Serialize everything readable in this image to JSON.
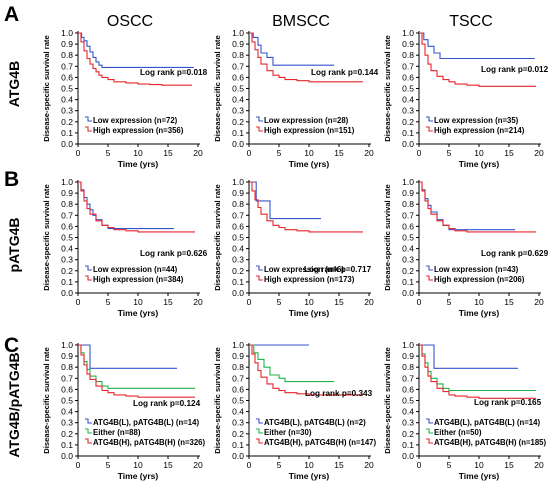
{
  "columns": [
    "OSCC",
    "BMSCC",
    "TSCC"
  ],
  "rows": [
    {
      "letter": "A",
      "label": "ATG4B"
    },
    {
      "letter": "B",
      "label": "pATG4B"
    },
    {
      "letter": "C",
      "label": "ATG4B/pATG4B"
    }
  ],
  "colors": {
    "blue": "#3355cc",
    "red": "#e8262b",
    "green": "#22b24a"
  },
  "chart_data": [
    {
      "type": "line",
      "row": 0,
      "col": 0,
      "xlabel": "Time (yrs)",
      "ylabel": "Disease-specific survival rate",
      "xlim": [
        0,
        20
      ],
      "ylim": [
        0,
        1.0
      ],
      "xticks": [
        0,
        5,
        10,
        15,
        20
      ],
      "yticks": [
        0.0,
        0.1,
        0.2,
        0.3,
        0.4,
        0.5,
        0.6,
        0.7,
        0.8,
        0.9,
        1.0
      ],
      "annotation": "Log rank p=0.018",
      "series": [
        {
          "name": "Low expression (n=72)",
          "color": "blue",
          "x": [
            0,
            0.6,
            1.0,
            1.5,
            2.0,
            2.5,
            3.0,
            3.5,
            4.0,
            19.3
          ],
          "y": [
            1.0,
            0.96,
            0.93,
            0.88,
            0.83,
            0.78,
            0.74,
            0.71,
            0.69,
            0.69
          ]
        },
        {
          "name": "High expression (n=356)",
          "color": "red",
          "x": [
            0,
            0.5,
            1.0,
            1.5,
            2.0,
            2.5,
            3.0,
            3.5,
            4.0,
            5.0,
            6.0,
            8.0,
            10.0,
            12.0,
            14.0,
            19.0
          ],
          "y": [
            1.0,
            0.92,
            0.84,
            0.77,
            0.72,
            0.68,
            0.65,
            0.62,
            0.6,
            0.58,
            0.56,
            0.55,
            0.54,
            0.535,
            0.53,
            0.53
          ]
        }
      ]
    },
    {
      "type": "line",
      "row": 0,
      "col": 1,
      "xlabel": "Time (yrs)",
      "ylabel": "Disease-specific survival rate",
      "xlim": [
        0,
        20
      ],
      "ylim": [
        0,
        1.0
      ],
      "xticks": [
        0,
        5,
        10,
        15,
        20
      ],
      "yticks": [
        0.0,
        0.1,
        0.2,
        0.3,
        0.4,
        0.5,
        0.6,
        0.7,
        0.8,
        0.9,
        1.0
      ],
      "annotation": "Log rank p=0.144",
      "series": [
        {
          "name": "Low expression (n=28)",
          "color": "blue",
          "x": [
            0,
            0.7,
            1.5,
            2.0,
            3.0,
            4.0,
            14.2
          ],
          "y": [
            1.0,
            0.96,
            0.89,
            0.82,
            0.78,
            0.71,
            0.71
          ]
        },
        {
          "name": "High expression (n=151)",
          "color": "red",
          "x": [
            0,
            0.5,
            1.0,
            1.5,
            2.0,
            3.0,
            4.0,
            5.0,
            6.0,
            8.0,
            10.0,
            14.0,
            19.0
          ],
          "y": [
            1.0,
            0.92,
            0.85,
            0.78,
            0.72,
            0.66,
            0.62,
            0.6,
            0.58,
            0.57,
            0.56,
            0.56,
            0.56
          ]
        }
      ]
    },
    {
      "type": "line",
      "row": 0,
      "col": 2,
      "xlabel": "Time (yrs)",
      "ylabel": "Disease-specific survival rate",
      "xlim": [
        0,
        20
      ],
      "ylim": [
        0,
        1.0
      ],
      "xticks": [
        0,
        5,
        10,
        15,
        20
      ],
      "yticks": [
        0.0,
        0.1,
        0.2,
        0.3,
        0.4,
        0.5,
        0.6,
        0.7,
        0.8,
        0.9,
        1.0
      ],
      "annotation": "Log rank p=0.012",
      "series": [
        {
          "name": "Low expression (n=35)",
          "color": "blue",
          "x": [
            0,
            0.8,
            1.5,
            2.5,
            3.5,
            19.3
          ],
          "y": [
            1.0,
            0.94,
            0.88,
            0.82,
            0.77,
            0.77
          ]
        },
        {
          "name": "High expression (n=214)",
          "color": "red",
          "x": [
            0,
            0.5,
            1.0,
            1.5,
            2.0,
            3.0,
            4.0,
            5.0,
            6.0,
            8.0,
            10.0,
            12.0,
            19.5
          ],
          "y": [
            1.0,
            0.9,
            0.8,
            0.72,
            0.66,
            0.61,
            0.58,
            0.56,
            0.54,
            0.53,
            0.52,
            0.52,
            0.52
          ]
        }
      ]
    },
    {
      "type": "line",
      "row": 1,
      "col": 0,
      "xlabel": "Time (yrs)",
      "ylabel": "Disease-specific survival rate",
      "xlim": [
        0,
        20
      ],
      "ylim": [
        0,
        1.0
      ],
      "xticks": [
        0,
        5,
        10,
        15,
        20
      ],
      "yticks": [
        0.0,
        0.1,
        0.2,
        0.3,
        0.4,
        0.5,
        0.6,
        0.7,
        0.8,
        0.9,
        1.0
      ],
      "annotation": "Log rank p=0.626",
      "series": [
        {
          "name": "Low expression (n=44)",
          "color": "blue",
          "x": [
            0,
            0.5,
            1.0,
            1.5,
            2.0,
            2.5,
            3.0,
            4.0,
            5.0,
            16.0
          ],
          "y": [
            1.0,
            0.93,
            0.86,
            0.8,
            0.75,
            0.7,
            0.66,
            0.61,
            0.58,
            0.58
          ]
        },
        {
          "name": "High expression (n=384)",
          "color": "red",
          "x": [
            0,
            0.5,
            1.0,
            1.5,
            2.0,
            3.0,
            4.0,
            5.0,
            6.0,
            8.0,
            10.0,
            19.5
          ],
          "y": [
            1.0,
            0.92,
            0.83,
            0.76,
            0.71,
            0.65,
            0.61,
            0.59,
            0.57,
            0.56,
            0.55,
            0.55
          ]
        }
      ]
    },
    {
      "type": "line",
      "row": 1,
      "col": 1,
      "xlabel": "Time (yrs)",
      "ylabel": "Disease-specific survival rate",
      "xlim": [
        0,
        20
      ],
      "ylim": [
        0,
        1.0
      ],
      "xticks": [
        0,
        5,
        10,
        15,
        20
      ],
      "yticks": [
        0.0,
        0.1,
        0.2,
        0.3,
        0.4,
        0.5,
        0.6,
        0.7,
        0.8,
        0.9,
        1.0
      ],
      "annotation": "Log rank p=0.717",
      "series": [
        {
          "name": "Low expression (n=6)",
          "color": "blue",
          "x": [
            0,
            1.2,
            3.5,
            12.0
          ],
          "y": [
            1.0,
            0.83,
            0.67,
            0.67
          ]
        },
        {
          "name": "High expression (n=173)",
          "color": "red",
          "x": [
            0,
            0.5,
            1.0,
            1.5,
            2.0,
            3.0,
            4.0,
            5.0,
            6.0,
            8.0,
            10.0,
            19.0
          ],
          "y": [
            1.0,
            0.92,
            0.84,
            0.77,
            0.71,
            0.65,
            0.61,
            0.59,
            0.57,
            0.56,
            0.55,
            0.55
          ]
        }
      ]
    },
    {
      "type": "line",
      "row": 1,
      "col": 2,
      "xlabel": "Time (yrs)",
      "ylabel": "Disease-specific survival rate",
      "xlim": [
        0,
        20
      ],
      "ylim": [
        0,
        1.0
      ],
      "xticks": [
        0,
        5,
        10,
        15,
        20
      ],
      "yticks": [
        0.0,
        0.1,
        0.2,
        0.3,
        0.4,
        0.5,
        0.6,
        0.7,
        0.8,
        0.9,
        1.0
      ],
      "annotation": "Log rank p=0.629",
      "series": [
        {
          "name": "Low expression (n=43)",
          "color": "blue",
          "x": [
            0,
            0.5,
            1.0,
            1.5,
            2.0,
            3.0,
            4.0,
            5.0,
            16.0
          ],
          "y": [
            1.0,
            0.93,
            0.85,
            0.79,
            0.73,
            0.66,
            0.61,
            0.57,
            0.57
          ]
        },
        {
          "name": "High expression (n=206)",
          "color": "red",
          "x": [
            0,
            0.5,
            1.0,
            1.5,
            2.0,
            3.0,
            4.0,
            5.0,
            6.0,
            8.0,
            10.0,
            19.5
          ],
          "y": [
            1.0,
            0.92,
            0.83,
            0.76,
            0.71,
            0.65,
            0.61,
            0.58,
            0.56,
            0.55,
            0.55,
            0.55
          ]
        }
      ]
    },
    {
      "type": "line",
      "row": 2,
      "col": 0,
      "xlabel": "Time (yrs)",
      "ylabel": "Disease-specific survival rate",
      "xlim": [
        0,
        20
      ],
      "ylim": [
        0,
        1.0
      ],
      "xticks": [
        0,
        5,
        10,
        15,
        20
      ],
      "yticks": [
        0.0,
        0.1,
        0.2,
        0.3,
        0.4,
        0.5,
        0.6,
        0.7,
        0.8,
        0.9,
        1.0
      ],
      "annotation": "Log rank p=0.124",
      "series": [
        {
          "name": "ATG4B(L), pATG4B(L) (n=14)",
          "color": "blue",
          "x": [
            0,
            2.0,
            16.5
          ],
          "y": [
            1.0,
            0.79,
            0.79
          ]
        },
        {
          "name": "Either (n=88)",
          "color": "green",
          "x": [
            0,
            0.5,
            1.0,
            1.5,
            2.0,
            3.0,
            4.0,
            5.0,
            19.5
          ],
          "y": [
            1.0,
            0.93,
            0.85,
            0.78,
            0.72,
            0.67,
            0.63,
            0.61,
            0.61
          ]
        },
        {
          "name": "ATG4B(H), pATG4B(H) (n=326)",
          "color": "red",
          "x": [
            0,
            0.5,
            1.0,
            1.5,
            2.0,
            3.0,
            4.0,
            5.0,
            6.0,
            8.0,
            10.0,
            19.5
          ],
          "y": [
            1.0,
            0.91,
            0.82,
            0.74,
            0.69,
            0.63,
            0.59,
            0.57,
            0.55,
            0.54,
            0.53,
            0.53
          ]
        }
      ]
    },
    {
      "type": "line",
      "row": 2,
      "col": 1,
      "xlabel": "Time (yrs)",
      "ylabel": "Disease-specific survival rate",
      "xlim": [
        0,
        20
      ],
      "ylim": [
        0,
        1.0
      ],
      "xticks": [
        0,
        5,
        10,
        15,
        20
      ],
      "yticks": [
        0.0,
        0.1,
        0.2,
        0.3,
        0.4,
        0.5,
        0.6,
        0.7,
        0.8,
        0.9,
        1.0
      ],
      "annotation": "Log rank p=0.343",
      "series": [
        {
          "name": "ATG4B(L), pATG4B(L) (n=2)",
          "color": "blue",
          "x": [
            0,
            10.0
          ],
          "y": [
            1.0,
            1.0
          ]
        },
        {
          "name": "Either (n=30)",
          "color": "green",
          "x": [
            0,
            0.8,
            1.5,
            2.5,
            3.5,
            5.0,
            6.0,
            14.2
          ],
          "y": [
            1.0,
            0.93,
            0.87,
            0.8,
            0.73,
            0.7,
            0.67,
            0.67
          ]
        },
        {
          "name": "ATG4B(H), pATG4B(H) (n=147)",
          "color": "red",
          "x": [
            0,
            0.5,
            1.0,
            1.5,
            2.0,
            3.0,
            4.0,
            5.0,
            6.0,
            8.0,
            10.0,
            19.0
          ],
          "y": [
            1.0,
            0.92,
            0.84,
            0.77,
            0.71,
            0.65,
            0.61,
            0.59,
            0.57,
            0.56,
            0.55,
            0.55
          ]
        }
      ]
    },
    {
      "type": "line",
      "row": 2,
      "col": 2,
      "xlabel": "Time (yrs)",
      "ylabel": "Disease-specific survival rate",
      "xlim": [
        0,
        20
      ],
      "ylim": [
        0,
        1.0
      ],
      "xticks": [
        0,
        5,
        10,
        15,
        20
      ],
      "yticks": [
        0.0,
        0.1,
        0.2,
        0.3,
        0.4,
        0.5,
        0.6,
        0.7,
        0.8,
        0.9,
        1.0
      ],
      "annotation": "Log rank p=0.165",
      "series": [
        {
          "name": "ATG4B(L), pATG4B(L) (n=14)",
          "color": "blue",
          "x": [
            0,
            2.5,
            16.5
          ],
          "y": [
            1.0,
            0.79,
            0.79
          ]
        },
        {
          "name": "Either (n=50)",
          "color": "green",
          "x": [
            0,
            0.5,
            1.0,
            1.5,
            2.0,
            3.0,
            4.0,
            5.0,
            19.5
          ],
          "y": [
            1.0,
            0.92,
            0.84,
            0.76,
            0.7,
            0.65,
            0.61,
            0.59,
            0.59
          ]
        },
        {
          "name": "ATG4B(H), pATG4B(H) (n=185)",
          "color": "red",
          "x": [
            0,
            0.5,
            1.0,
            1.5,
            2.0,
            3.0,
            4.0,
            5.0,
            6.0,
            8.0,
            10.0,
            19.5
          ],
          "y": [
            1.0,
            0.9,
            0.8,
            0.72,
            0.67,
            0.61,
            0.58,
            0.55,
            0.54,
            0.53,
            0.52,
            0.52
          ]
        }
      ]
    }
  ]
}
